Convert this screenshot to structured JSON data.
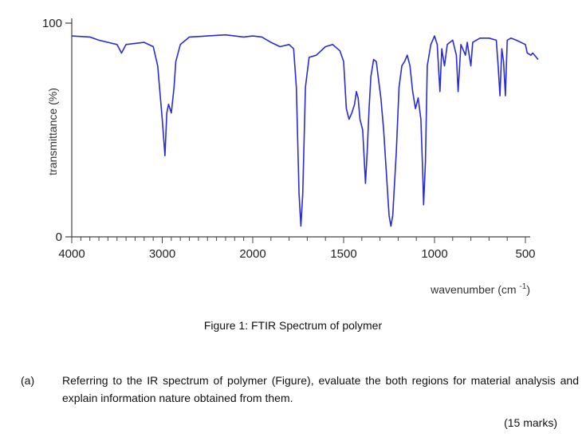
{
  "chart_data": {
    "type": "line",
    "xlabel": "wavenumber (cm",
    "xlabel_sup": "-1",
    "xlabel_close": ")",
    "ylabel": "transmittance (%)",
    "xlim": [
      4000,
      500
    ],
    "ylim": [
      0,
      100
    ],
    "x_reversed": true,
    "x_ticks": [
      4000,
      3000,
      2000,
      1500,
      1000,
      500
    ],
    "y_ticks": [
      0,
      100
    ],
    "line_color": "#2b2bd6",
    "series": [
      {
        "values": [
          [
            4000,
            94
          ],
          [
            3800,
            93.5
          ],
          [
            3700,
            92
          ],
          [
            3600,
            91
          ],
          [
            3500,
            90
          ],
          [
            3450,
            86
          ],
          [
            3400,
            90
          ],
          [
            3200,
            91
          ],
          [
            3100,
            89
          ],
          [
            3050,
            80
          ],
          [
            3000,
            55
          ],
          [
            2970,
            38
          ],
          [
            2950,
            58
          ],
          [
            2930,
            62
          ],
          [
            2900,
            58
          ],
          [
            2870,
            70
          ],
          [
            2850,
            82
          ],
          [
            2800,
            90
          ],
          [
            2700,
            93.5
          ],
          [
            2500,
            94
          ],
          [
            2300,
            94.5
          ],
          [
            2200,
            94
          ],
          [
            2100,
            93.5
          ],
          [
            2000,
            94
          ],
          [
            1950,
            93.5
          ],
          [
            1900,
            91
          ],
          [
            1850,
            89
          ],
          [
            1800,
            90
          ],
          [
            1775,
            88
          ],
          [
            1760,
            70
          ],
          [
            1745,
            20
          ],
          [
            1735,
            5
          ],
          [
            1725,
            20
          ],
          [
            1710,
            70
          ],
          [
            1690,
            84
          ],
          [
            1650,
            85
          ],
          [
            1600,
            89
          ],
          [
            1560,
            90
          ],
          [
            1520,
            87
          ],
          [
            1500,
            82
          ],
          [
            1485,
            60
          ],
          [
            1470,
            55
          ],
          [
            1455,
            58
          ],
          [
            1440,
            62
          ],
          [
            1430,
            68
          ],
          [
            1420,
            65
          ],
          [
            1410,
            55
          ],
          [
            1395,
            50
          ],
          [
            1380,
            25
          ],
          [
            1370,
            40
          ],
          [
            1360,
            60
          ],
          [
            1350,
            75
          ],
          [
            1335,
            83
          ],
          [
            1320,
            82
          ],
          [
            1310,
            75
          ],
          [
            1295,
            65
          ],
          [
            1280,
            50
          ],
          [
            1265,
            30
          ],
          [
            1250,
            10
          ],
          [
            1240,
            5
          ],
          [
            1230,
            10
          ],
          [
            1210,
            40
          ],
          [
            1195,
            70
          ],
          [
            1180,
            80
          ],
          [
            1165,
            82
          ],
          [
            1150,
            85
          ],
          [
            1135,
            80
          ],
          [
            1120,
            68
          ],
          [
            1105,
            60
          ],
          [
            1090,
            65
          ],
          [
            1075,
            55
          ],
          [
            1065,
            30
          ],
          [
            1060,
            15
          ],
          [
            1050,
            35
          ],
          [
            1040,
            80
          ],
          [
            1020,
            90
          ],
          [
            1000,
            94
          ],
          [
            985,
            90
          ],
          [
            970,
            68
          ],
          [
            960,
            88
          ],
          [
            945,
            80
          ],
          [
            930,
            90
          ],
          [
            900,
            92
          ],
          [
            880,
            85
          ],
          [
            870,
            68
          ],
          [
            855,
            90
          ],
          [
            830,
            85
          ],
          [
            820,
            91
          ],
          [
            800,
            80
          ],
          [
            790,
            91
          ],
          [
            750,
            93
          ],
          [
            700,
            93
          ],
          [
            660,
            92
          ],
          [
            650,
            80
          ],
          [
            640,
            66
          ],
          [
            630,
            88
          ],
          [
            620,
            82
          ],
          [
            610,
            66
          ],
          [
            600,
            92
          ],
          [
            580,
            93
          ],
          [
            550,
            92
          ],
          [
            500,
            90
          ],
          [
            490,
            86
          ],
          [
            470,
            85
          ],
          [
            460,
            86
          ],
          [
            440,
            84
          ],
          [
            430,
            83
          ]
        ]
      }
    ]
  },
  "caption": "Figure 1: FTIR Spectrum of polymer",
  "question": {
    "label": "(a)",
    "text": "Referring to the IR spectrum of polymer (Figure), evaluate the both regions for material analysis and explain information nature obtained from them.",
    "marks": "(15 marks)"
  }
}
